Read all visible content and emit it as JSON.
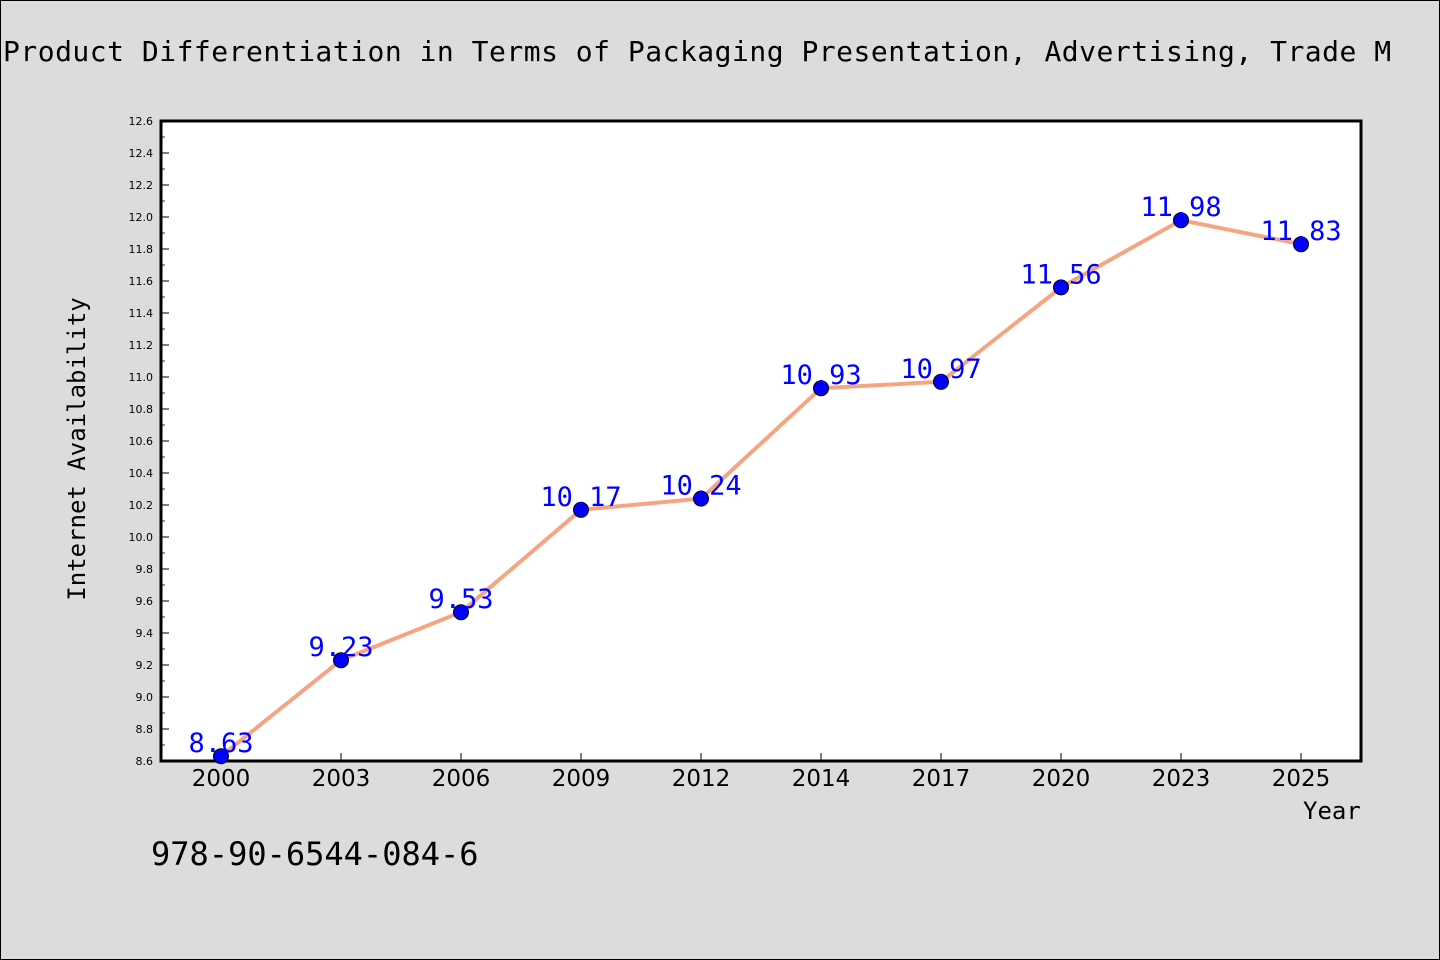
{
  "chart_data": {
    "type": "line",
    "title": "Product Differentiation in Terms of Packaging Presentation, Advertising, Trade M",
    "xlabel": "Year",
    "ylabel": "Internet Availability",
    "categories": [
      "2000",
      "2003",
      "2006",
      "2009",
      "2012",
      "2014",
      "2017",
      "2020",
      "2023",
      "2025"
    ],
    "series": [
      {
        "values": [
          8.63,
          9.23,
          9.53,
          10.17,
          10.24,
          10.93,
          10.97,
          11.56,
          11.98,
          11.83
        ],
        "line_color": "#f4a582",
        "marker_color": "#0000ff",
        "label_color": "#0000ff"
      }
    ],
    "ylim": [
      8.6,
      12.6
    ],
    "y_ticks": [
      "8.6",
      "8.8",
      "9.0",
      "9.2",
      "9.4",
      "9.6",
      "9.8",
      "10.0",
      "10.2",
      "10.4",
      "10.6",
      "10.8",
      "11.0",
      "11.2",
      "11.4",
      "11.6",
      "11.8",
      "12.0",
      "12.2",
      "12.4",
      "12.6"
    ],
    "grid": false,
    "legend": "none"
  },
  "footer": {
    "code": "978-90-6544-084-6"
  },
  "colors": {
    "background": "#dcdcdc",
    "plot_background": "#ffffff"
  }
}
